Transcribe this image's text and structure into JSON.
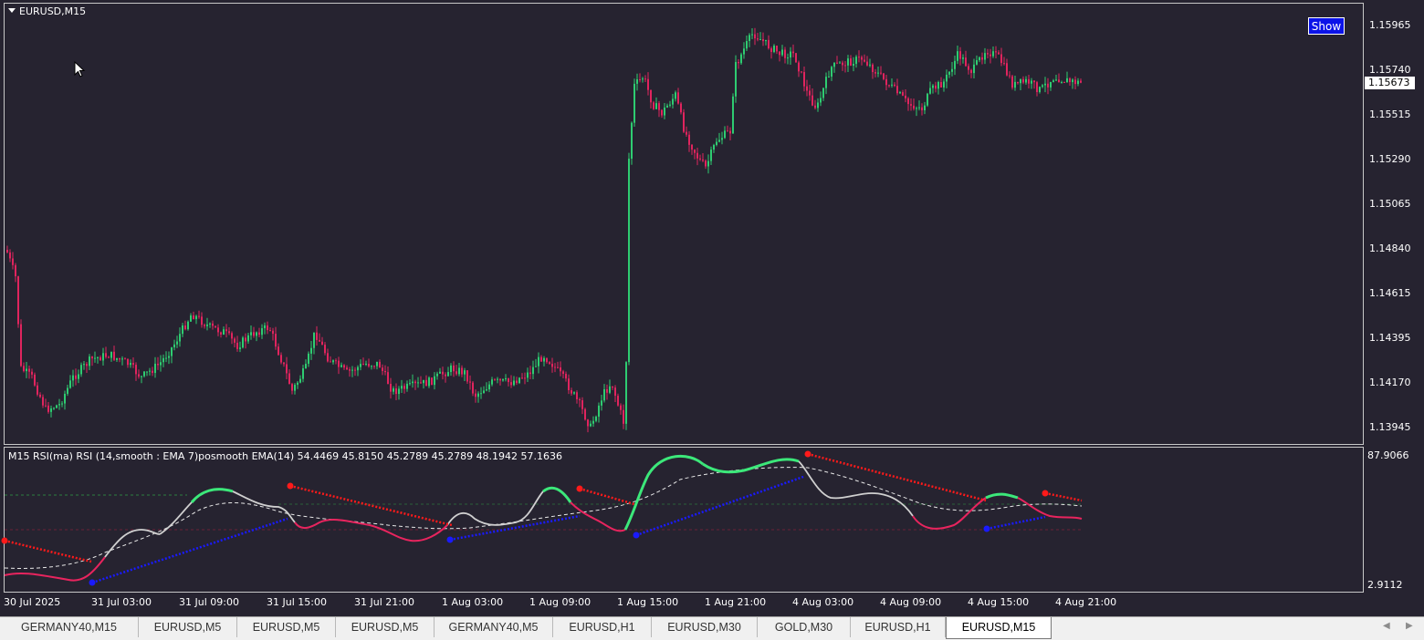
{
  "chart": {
    "symbol": "EURUSD,M15",
    "show_button": "Show",
    "current_price": "1.15673",
    "price_ticks": [
      "1.15965",
      "1.15740",
      "1.15515",
      "1.15290",
      "1.15065",
      "1.14840",
      "1.14615",
      "1.14395",
      "1.14170",
      "1.13945"
    ],
    "time_labels": [
      "30 Jul 2025",
      "31 Jul 03:00",
      "31 Jul 09:00",
      "31 Jul 15:00",
      "31 Jul 21:00",
      "1 Aug 03:00",
      "1 Aug 09:00",
      "1 Aug 15:00",
      "1 Aug 21:00",
      "4 Aug 03:00",
      "4 Aug 09:00",
      "4 Aug 15:00",
      "4 Aug 21:00"
    ],
    "colors": {
      "background": "#262330",
      "bull": "#2ecc71",
      "bear": "#e0245e"
    }
  },
  "indicator": {
    "title": "M15 RSI(ma) RSI (14,smooth : EMA  7)posmooth EMA(14) 54.4469 45.8150 45.2789 45.2789 48.1942 57.1636",
    "axis_max": "87.9066",
    "axis_min": "2.9112",
    "colors": {
      "rsi_up": "#3ce87a",
      "rsi_down": "#e8245e",
      "rsi_neutral": "#d0d0d0",
      "upper_dots": "#ff1a1a",
      "lower_dots": "#1a1aff"
    }
  },
  "tabs": [
    {
      "label": "GERMANY40,M15"
    },
    {
      "label": "EURUSD,M5"
    },
    {
      "label": "EURUSD,M5"
    },
    {
      "label": "EURUSD,M5"
    },
    {
      "label": "GERMANY40,M5"
    },
    {
      "label": "EURUSD,H1"
    },
    {
      "label": "EURUSD,M30"
    },
    {
      "label": "GOLD,M30"
    },
    {
      "label": "EURUSD,H1"
    },
    {
      "label": "EURUSD,M15",
      "active": true
    }
  ],
  "tab_nav": {
    "left_icon": "triangle-left-icon",
    "right_icon": "triangle-right-icon"
  }
}
